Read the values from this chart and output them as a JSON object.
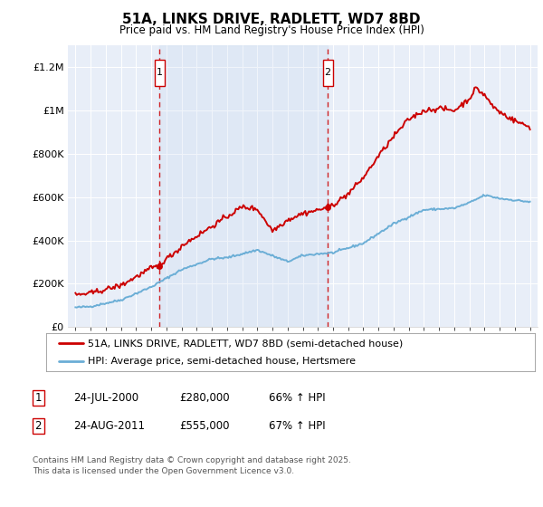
{
  "title": "51A, LINKS DRIVE, RADLETT, WD7 8BD",
  "subtitle": "Price paid vs. HM Land Registry's House Price Index (HPI)",
  "legend_line1": "51A, LINKS DRIVE, RADLETT, WD7 8BD (semi-detached house)",
  "legend_line2": "HPI: Average price, semi-detached house, Hertsmere",
  "footer": "Contains HM Land Registry data © Crown copyright and database right 2025.\nThis data is licensed under the Open Government Licence v3.0.",
  "sale1_date": "24-JUL-2000",
  "sale1_price": "£280,000",
  "sale1_hpi": "66% ↑ HPI",
  "sale1_year": 2000.56,
  "sale1_value": 280000,
  "sale2_date": "24-AUG-2011",
  "sale2_price": "£555,000",
  "sale2_hpi": "67% ↑ HPI",
  "sale2_year": 2011.65,
  "sale2_value": 555000,
  "ylim": [
    0,
    1300000
  ],
  "xlim": [
    1994.5,
    2025.5
  ],
  "bg_color": "#e8eef8",
  "red_color": "#cc0000",
  "blue_color": "#6baed6",
  "grid_color": "#cccccc",
  "yticks": [
    0,
    200000,
    400000,
    600000,
    800000,
    1000000,
    1200000
  ],
  "ytick_labels": [
    "£0",
    "£200K",
    "£400K",
    "£600K",
    "£800K",
    "£1M",
    "£1.2M"
  ],
  "xticks": [
    1995,
    1996,
    1997,
    1998,
    1999,
    2000,
    2001,
    2002,
    2003,
    2004,
    2005,
    2006,
    2007,
    2008,
    2009,
    2010,
    2011,
    2012,
    2013,
    2014,
    2015,
    2016,
    2017,
    2018,
    2019,
    2020,
    2021,
    2022,
    2023,
    2024,
    2025
  ]
}
